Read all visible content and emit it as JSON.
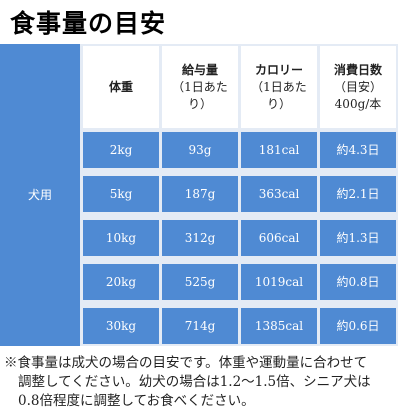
{
  "title": "食事量の目安",
  "table": {
    "group_label": "犬用",
    "header": [
      [
        "体重"
      ],
      [
        "給与量",
        "（1日あた",
        "り）"
      ],
      [
        "カロリー",
        "（1日あた",
        "り）"
      ],
      [
        "消費日数",
        "（目安）",
        "400g/本"
      ]
    ],
    "rows": [
      [
        "2kg",
        "93g",
        "181cal",
        "約4.3日"
      ],
      [
        "5kg",
        "187g",
        "363cal",
        "約2.1日"
      ],
      [
        "10kg",
        "312g",
        "606cal",
        "約1.3日"
      ],
      [
        "20kg",
        "525g",
        "1019cal",
        "約0.8日"
      ],
      [
        "30kg",
        "714g",
        "1385cal",
        "約0.6日"
      ]
    ]
  },
  "note": [
    "※食事量は成犬の場合の目安です。体重や運動量に合わせて",
    "調整してください。幼犬の場合は1.2〜1.5倍、シニア犬は",
    "0.8倍程度に調整してお食べください。"
  ]
}
